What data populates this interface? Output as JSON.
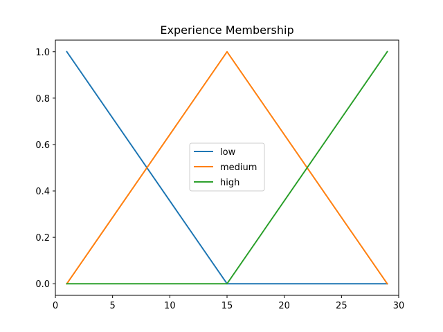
{
  "chart_data": {
    "type": "line",
    "title": "Experience Membership",
    "xlabel": "",
    "ylabel": "",
    "xlim": [
      0,
      30
    ],
    "ylim": [
      -0.05,
      1.05
    ],
    "xticks": [
      0,
      5,
      10,
      15,
      20,
      25,
      30
    ],
    "yticks": [
      0.0,
      0.2,
      0.4,
      0.6,
      0.8,
      1.0
    ],
    "xtick_labels": [
      "0",
      "5",
      "10",
      "15",
      "20",
      "25",
      "30"
    ],
    "ytick_labels": [
      "0.0",
      "0.2",
      "0.4",
      "0.6",
      "0.8",
      "1.0"
    ],
    "grid": false,
    "legend_position": "center",
    "series": [
      {
        "name": "low",
        "color": "#1f77b4",
        "x": [
          1,
          15,
          29
        ],
        "y": [
          1.0,
          0.0,
          0.0
        ]
      },
      {
        "name": "medium",
        "color": "#ff7f0e",
        "x": [
          1,
          15,
          29
        ],
        "y": [
          0.0,
          1.0,
          0.0
        ]
      },
      {
        "name": "high",
        "color": "#2ca02c",
        "x": [
          1,
          15,
          29
        ],
        "y": [
          0.0,
          0.0,
          1.0
        ]
      }
    ]
  }
}
